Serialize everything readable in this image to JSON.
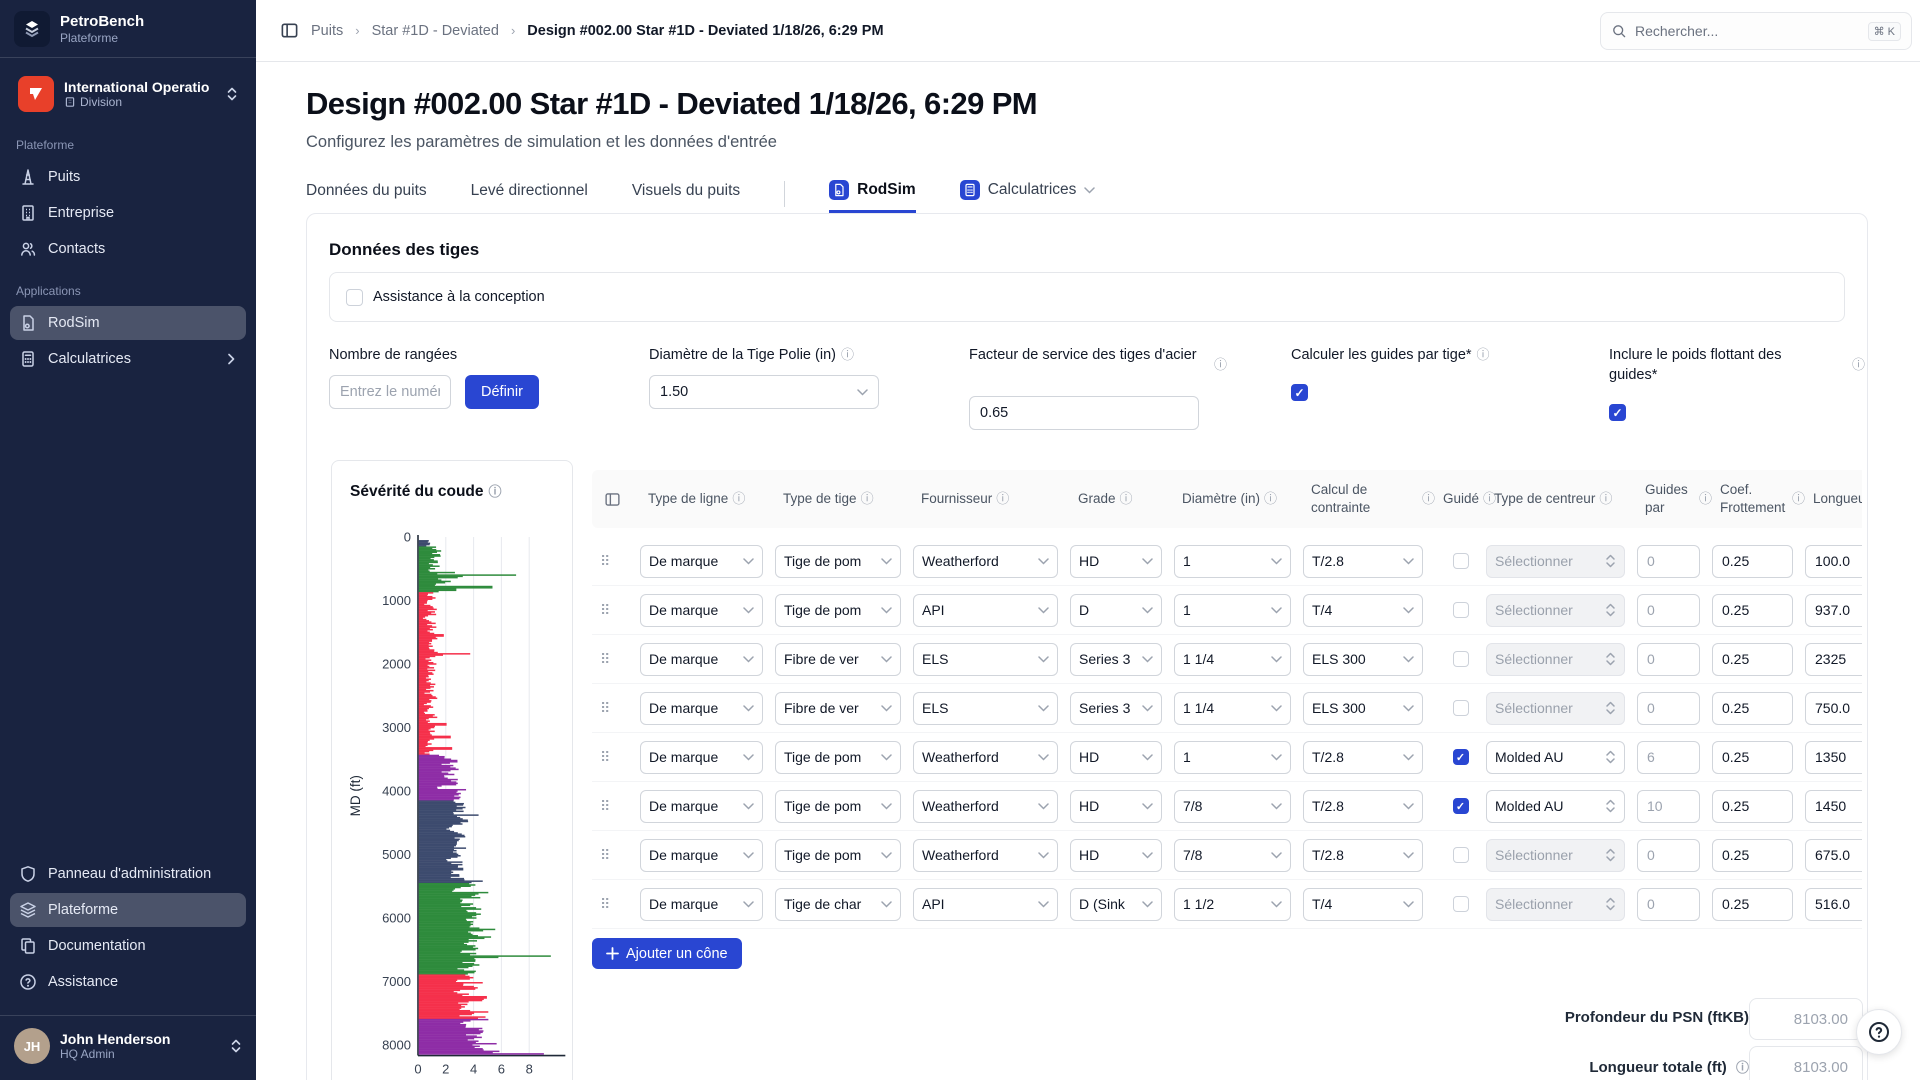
{
  "app": {
    "brand": {
      "name": "PetroBench",
      "subtitle": "Plateforme"
    },
    "org": {
      "name": "International Operatio",
      "type": "Division"
    },
    "search": {
      "placeholder": "Rechercher...",
      "shortcut": "⌘ K"
    },
    "breadcrumb": [
      "Puits",
      "Star #1D - Deviated",
      "Design #002.00 Star #1D - Deviated 1/18/26, 6:29 PM"
    ]
  },
  "sidebar": {
    "section_platform": "Plateforme",
    "section_apps": "Applications",
    "items_platform": [
      {
        "label": "Puits",
        "icon": "derrick"
      },
      {
        "label": "Entreprise",
        "icon": "building"
      },
      {
        "label": "Contacts",
        "icon": "users"
      }
    ],
    "items_apps": [
      {
        "label": "RodSim",
        "icon": "rodsim",
        "active": true
      },
      {
        "label": "Calculatrices",
        "icon": "calculator",
        "chevron": true
      }
    ],
    "items_footer": [
      {
        "label": "Panneau d'administration",
        "icon": "shield"
      },
      {
        "label": "Plateforme",
        "icon": "layers",
        "active": true
      },
      {
        "label": "Documentation",
        "icon": "docs"
      },
      {
        "label": "Assistance",
        "icon": "help"
      }
    ],
    "user": {
      "name": "John Henderson",
      "role": "HQ Admin",
      "initials": "JH"
    }
  },
  "header": {
    "title": "Design #002.00 Star #1D - Deviated 1/18/26, 6:29 PM",
    "subtitle": "Configurez les paramètres de simulation et les données d'entrée",
    "tabs": [
      {
        "label": "Données du puits"
      },
      {
        "label": "Levé directionnel"
      },
      {
        "label": "Visuels du puits"
      },
      {
        "label": "RodSim",
        "icon": "rodsim",
        "active": true,
        "divider_before": true
      },
      {
        "label": "Calculatrices",
        "icon": "calculator",
        "caret": true
      }
    ]
  },
  "rod_section": {
    "heading": "Données des tiges",
    "design_assist_label": "Assistance à la conception",
    "design_assist_checked": false,
    "fields": {
      "rows_label": "Nombre de rangées",
      "rows_placeholder": "Entrez le numéro",
      "set_button": "Définir",
      "polished_label": "Diamètre de la Tige Polie (in)",
      "polished_value": "1.50",
      "service_label": "Facteur de service des tiges d'acier",
      "service_value": "0.65",
      "calc_guides_label": "Calculer les guides par tige*",
      "calc_guides_checked": true,
      "float_weight_label": "Inclure le poids flottant des guides*",
      "float_weight_checked": true
    },
    "add_button": "Ajouter un cône",
    "psn_label": "Profondeur du PSN (ftKB)",
    "psn_value": "8103.00",
    "total_label": "Longueur totale (ft)",
    "total_value": "8103.00"
  },
  "table": {
    "columns": [
      {
        "label": "Type de ligne",
        "info": true
      },
      {
        "label": "Type de tige",
        "info": true
      },
      {
        "label": "Fournisseur",
        "info": true
      },
      {
        "label": "Grade",
        "info": true
      },
      {
        "label": "Diamètre (in)",
        "info": true
      },
      {
        "label": "Calcul de contrainte",
        "info": true
      },
      {
        "label": "Guidé",
        "info": true
      },
      {
        "label": "Type de centreur",
        "info": true
      },
      {
        "label": "Guides par",
        "info": true
      },
      {
        "label": "Coef. Frottement",
        "info": true
      },
      {
        "label": "Longueur (ft)",
        "info": false
      }
    ],
    "rows": [
      {
        "line_type": "De marque",
        "rod_type": "Tige de pom",
        "vendor": "Weatherford",
        "grade": "HD",
        "diameter": "1",
        "stress_calc": "T/2.8",
        "guided": false,
        "centralizer": "Sélectionner",
        "guides_per": "0",
        "friction": "0.25",
        "length": "100.0"
      },
      {
        "line_type": "De marque",
        "rod_type": "Tige de pom",
        "vendor": "API",
        "grade": "D",
        "diameter": "1",
        "stress_calc": "T/4",
        "guided": false,
        "centralizer": "Sélectionner",
        "guides_per": "0",
        "friction": "0.25",
        "length": "937.0"
      },
      {
        "line_type": "De marque",
        "rod_type": "Fibre de ver",
        "vendor": "ELS",
        "grade": "Series 3",
        "diameter": "1 1/4",
        "stress_calc": "ELS 300",
        "guided": false,
        "centralizer": "Sélectionner",
        "guides_per": "0",
        "friction": "0.25",
        "length": "2325"
      },
      {
        "line_type": "De marque",
        "rod_type": "Fibre de ver",
        "vendor": "ELS",
        "grade": "Series 3",
        "diameter": "1 1/4",
        "stress_calc": "ELS 300",
        "guided": false,
        "centralizer": "Sélectionner",
        "guides_per": "0",
        "friction": "0.25",
        "length": "750.0"
      },
      {
        "line_type": "De marque",
        "rod_type": "Tige de pom",
        "vendor": "Weatherford",
        "grade": "HD",
        "diameter": "1",
        "stress_calc": "T/2.8",
        "guided": true,
        "centralizer": "Molded AU",
        "guides_per": "6",
        "friction": "0.25",
        "length": "1350"
      },
      {
        "line_type": "De marque",
        "rod_type": "Tige de pom",
        "vendor": "Weatherford",
        "grade": "HD",
        "diameter": "7/8",
        "stress_calc": "T/2.8",
        "guided": true,
        "centralizer": "Molded AU",
        "guides_per": "10",
        "friction": "0.25",
        "length": "1450"
      },
      {
        "line_type": "De marque",
        "rod_type": "Tige de pom",
        "vendor": "Weatherford",
        "grade": "HD",
        "diameter": "7/8",
        "stress_calc": "T/2.8",
        "guided": false,
        "centralizer": "Sélectionner",
        "guides_per": "0",
        "friction": "0.25",
        "length": "675.0"
      },
      {
        "line_type": "De marque",
        "rod_type": "Tige de char",
        "vendor": "API",
        "grade": "D (Sink",
        "diameter": "1 1/2",
        "stress_calc": "T/4",
        "guided": false,
        "centralizer": "Sélectionner",
        "guides_per": "0",
        "friction": "0.25",
        "length": "516.0"
      }
    ]
  },
  "chart_data": {
    "type": "bar",
    "orientation": "horizontal",
    "title": "Sévérité du coude",
    "xlabel": "",
    "ylabel": "MD (ft)",
    "x_ticks": [
      0,
      2,
      4,
      6,
      8
    ],
    "xlim": [
      0,
      10.6
    ],
    "y_ticks": [
      0,
      1000,
      2000,
      3000,
      4000,
      5000,
      6000,
      7000,
      8000
    ],
    "ylim": [
      0,
      8150
    ],
    "grid": true,
    "bar_step_ft": 20,
    "segments": [
      {
        "md_from": 60,
        "md_to": 160,
        "color": "#3d4b6e",
        "range": [
          0.3,
          1.0
        ],
        "spikes": {}
      },
      {
        "md_from": 160,
        "md_to": 870,
        "color": "#2e8b3c",
        "range": [
          0.4,
          2.0
        ],
        "spikes": {
          "560": 2.6,
          "600": 7.0,
          "640": 2.8,
          "700": 2.3,
          "790": 5.3,
          "830": 2.7
        }
      },
      {
        "md_from": 870,
        "md_to": 3430,
        "color": "#f5304b",
        "range": [
          0.2,
          1.5
        ],
        "spikes": {
          "1550": 1.8,
          "1840": 3.7,
          "2950": 2.0,
          "3150": 2.3,
          "3330": 2.4
        }
      },
      {
        "md_from": 3430,
        "md_to": 4150,
        "color": "#8e2da6",
        "range": [
          1.0,
          3.2
        ],
        "spikes": {
          "3980": 3.4,
          "4100": 3.0
        }
      },
      {
        "md_from": 4150,
        "md_to": 5450,
        "color": "#3d4b6e",
        "range": [
          1.8,
          3.8
        ],
        "spikes": {
          "4380": 4.3,
          "4900": 3.4,
          "5230": 3.2,
          "5420": 4.6
        }
      },
      {
        "md_from": 5450,
        "md_to": 6900,
        "color": "#2e8b3c",
        "range": [
          2.2,
          4.8
        ],
        "spikes": {
          "5600": 5.0,
          "6180": 5.5,
          "6300": 5.2,
          "6600": 9.5,
          "6640": 4.0
        }
      },
      {
        "md_from": 6900,
        "md_to": 7600,
        "color": "#f5304b",
        "range": [
          2.2,
          4.8
        ],
        "spikes": {
          "7020": 4.6,
          "7250": 4.9,
          "7480": 5.0,
          "7560": 4.8
        }
      },
      {
        "md_from": 7600,
        "md_to": 8150,
        "color": "#8e2da6",
        "range": [
          2.8,
          5.2
        ],
        "spikes": {
          "7800": 4.6,
          "7980": 5.6,
          "8100": 5.8,
          "8140": 9.0
        }
      }
    ]
  },
  "colors": {
    "accent": "#2946d2",
    "sidebar_bg": "#192340",
    "org_logo": "#e8402a",
    "danger": "#f5304b",
    "green": "#2e8b3c",
    "purple": "#8e2da6",
    "navy": "#3d4b6e"
  }
}
